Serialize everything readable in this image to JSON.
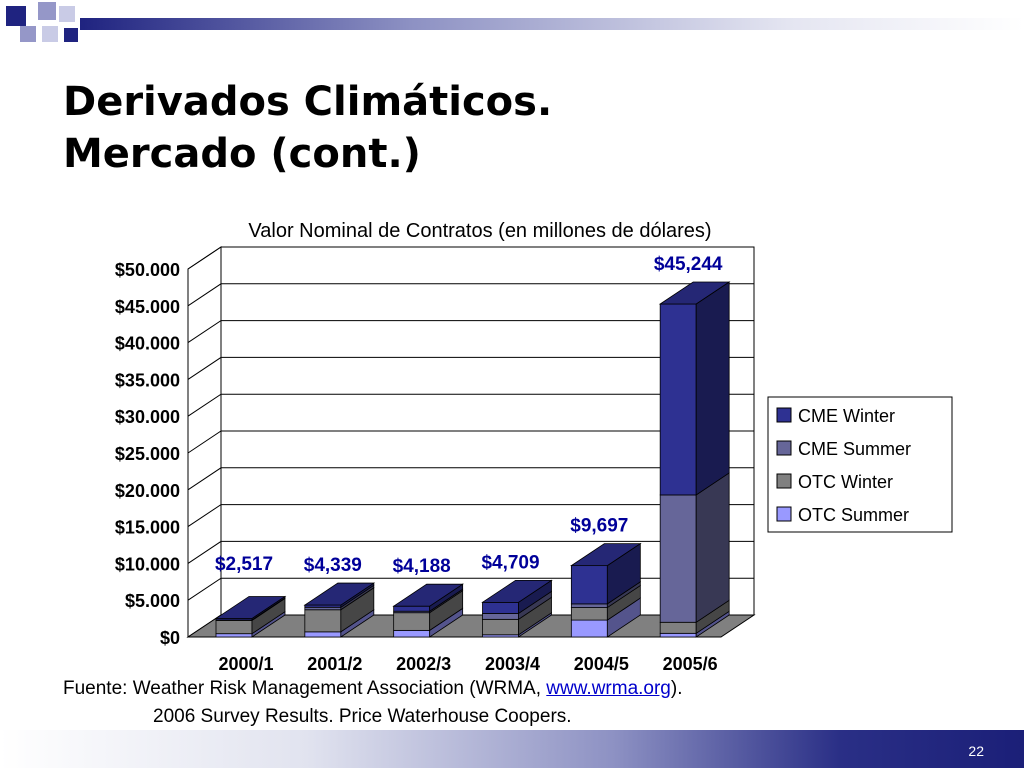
{
  "slide": {
    "title_line1": "Derivados Climáticos.",
    "title_line2": "Mercado (cont.)",
    "source_prefix": "Fuente: Weather Risk Management Association (WRMA, ",
    "source_link": "www.wrma.org",
    "source_suffix": ").",
    "source_line2": "2006 Survey Results. Price Waterhouse Coopers.",
    "page_number": "22"
  },
  "colors": {
    "accent_navy": "#1f2380",
    "cme_winter": "#2e3192",
    "cme_summer": "#666699",
    "otc_winter": "#808080",
    "otc_summer": "#9999ff",
    "total_label": "#000099"
  },
  "chart_data": {
    "type": "bar",
    "stacked": true,
    "three_d": true,
    "title": "Valor Nominal de Contratos (en millones de dólares)",
    "categories": [
      "2000/1",
      "2001/2",
      "2002/3",
      "2003/4",
      "2004/5",
      "2005/6"
    ],
    "series": [
      {
        "name": "OTC Summer",
        "values": [
          450,
          700,
          900,
          300,
          2300,
          500
        ]
      },
      {
        "name": "OTC Winter",
        "values": [
          1800,
          3000,
          2400,
          2100,
          1700,
          1500
        ]
      },
      {
        "name": "CME Summer",
        "values": [
          67,
          339,
          200,
          800,
          500,
          17300
        ]
      },
      {
        "name": "CME Winter",
        "values": [
          200,
          300,
          688,
          1509,
          5197,
          25944
        ]
      }
    ],
    "totals": [
      2517,
      4339,
      4188,
      4709,
      9697,
      45244
    ],
    "total_labels": [
      "$2,517",
      "$4,339",
      "$4,188",
      "$4,709",
      "$9,697",
      "$45,244"
    ],
    "y_ticks": [
      "$0",
      "$5.000",
      "$10.000",
      "$15.000",
      "$20.000",
      "$25.000",
      "$30.000",
      "$35.000",
      "$40.000",
      "$45.000",
      "$50.000"
    ],
    "ylim": [
      0,
      50000
    ],
    "grid": true,
    "legend": [
      "CME Winter",
      "CME Summer",
      "OTC Winter",
      "OTC Summer"
    ],
    "legend_position": "right"
  }
}
